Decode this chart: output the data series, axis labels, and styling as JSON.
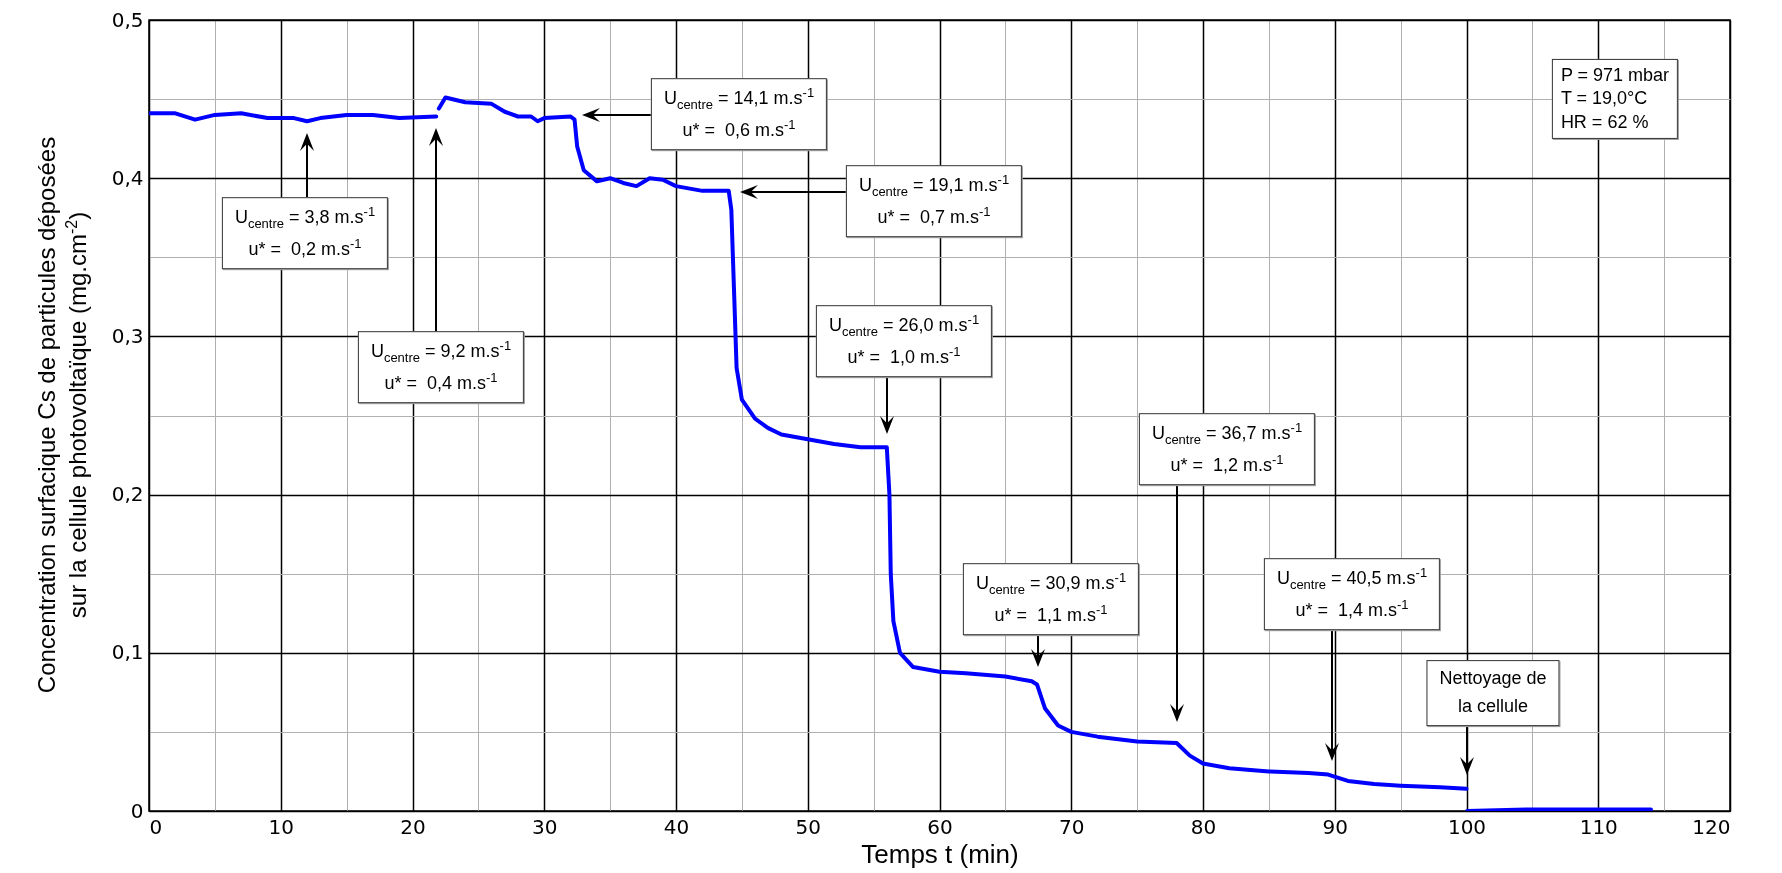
{
  "chart_data": {
    "type": "line",
    "xlabel": "Temps t (min)",
    "ylabel": "Concentration surfacique Cs de particules déposées\nsur la cellule photovoltaïque (mg.cm$^{-2}$)",
    "x": [
      0,
      2,
      3.5,
      5,
      7,
      9,
      11,
      12,
      13,
      15,
      17,
      19,
      21.8,
      21.9,
      22,
      22.5,
      24,
      26,
      27,
      28,
      29,
      29.5,
      30,
      32,
      32.3,
      32.5,
      33,
      34,
      35,
      36,
      37,
      38,
      39,
      40,
      42,
      44,
      44.2,
      44.4,
      44.6,
      45,
      46,
      47,
      48,
      50,
      52,
      54,
      56,
      56.2,
      56.3,
      56.5,
      57,
      58,
      60,
      62,
      65,
      67,
      67.4,
      68,
      69,
      70,
      72,
      75,
      78,
      79,
      80,
      82,
      85,
      88,
      89.5,
      91,
      93,
      95,
      98,
      100,
      100.02,
      100.05,
      105,
      110,
      114
    ],
    "series": [
      {
        "color": "#0000ff",
        "values": [
          0.441,
          0.441,
          0.437,
          0.44,
          0.441,
          0.438,
          0.438,
          0.436,
          0.438,
          0.44,
          0.44,
          0.438,
          0.439,
          null,
          0.444,
          0.451,
          0.448,
          0.447,
          0.442,
          0.439,
          0.439,
          0.436,
          0.438,
          0.439,
          0.437,
          0.42,
          0.405,
          0.398,
          0.4,
          0.397,
          0.395,
          0.4,
          0.399,
          0.395,
          0.392,
          0.392,
          0.38,
          0.33,
          0.28,
          0.26,
          0.248,
          0.242,
          0.238,
          0.235,
          0.232,
          0.23,
          0.23,
          0.2,
          0.15,
          0.12,
          0.1,
          0.091,
          0.088,
          0.087,
          0.085,
          0.082,
          0.08,
          0.065,
          0.054,
          0.05,
          0.047,
          0.044,
          0.043,
          0.035,
          0.03,
          0.027,
          0.025,
          0.024,
          0.023,
          0.019,
          0.017,
          0.016,
          0.015,
          0.014,
          null,
          0.0,
          0.001,
          0.001,
          0.001
        ]
      }
    ],
    "xlim": [
      0,
      120
    ],
    "ylim": [
      0,
      0.5
    ],
    "xticks": [
      0,
      {
        "value": 5,
        "label": null
      },
      10,
      {
        "value": 15,
        "label": null
      },
      20,
      {
        "value": 25,
        "label": null
      },
      30,
      {
        "value": 35,
        "label": null
      },
      40,
      {
        "value": 45,
        "label": null
      },
      50,
      {
        "value": 55,
        "label": null
      },
      60,
      {
        "value": 65,
        "label": null
      },
      70,
      {
        "value": 75,
        "label": null
      },
      80,
      {
        "value": 85,
        "label": null
      },
      90,
      {
        "value": 95,
        "label": null
      },
      100,
      {
        "value": 105,
        "label": null
      },
      110,
      {
        "value": 115,
        "label": null
      },
      120
    ],
    "yticks": [
      0,
      {
        "value": 0.05,
        "label": null
      },
      {
        "value": 0.1,
        "label": "0,1"
      },
      {
        "value": 0.15,
        "label": null
      },
      {
        "value": 0.2,
        "label": "0,2"
      },
      {
        "value": 0.25,
        "label": null
      },
      {
        "value": 0.3,
        "label": "0,3"
      },
      {
        "value": 0.35,
        "label": null
      },
      {
        "value": 0.4,
        "label": "0,4"
      },
      {
        "value": 0.45,
        "label": null
      },
      {
        "value": 0.5,
        "label": "0,5"
      }
    ],
    "grid": true,
    "annotations": [
      "U$_{centre}$ = 3,8 m.s$^{-1}$\nu* =  0,2 m.s$^{-1}$",
      "U$_{centre}$ = 9,2 m.s$^{-1}$\nu* =  0,4 m.s$^{-1}$",
      "U$_{centre}$ = 14,1 m.s$^{-1}$\nu* =  0,6 m.s$^{-1}$",
      "U$_{centre}$ = 19,1 m.s$^{-1}$\nu* =  0,7 m.s$^{-1}$",
      "U$_{centre}$ = 26,0 m.s$^{-1}$\nu* =  1,0 m.s$^{-1}$",
      "U$_{centre}$ = 36,7 m.s$^{-1}$\nu* =  1,2 m.s$^{-1}$",
      "U$_{centre}$ = 30,9 m.s$^{-1}$\nu* =  1,1 m.s$^{-1}$",
      "U$_{centre}$ = 40,5 m.s$^{-1}$\nu* =  1,4 m.s$^{-1}$",
      "Nettoyage de\nla cellule",
      "P = 971 mbar\nT = 19,0°C\nHR = 62 %"
    ]
  }
}
